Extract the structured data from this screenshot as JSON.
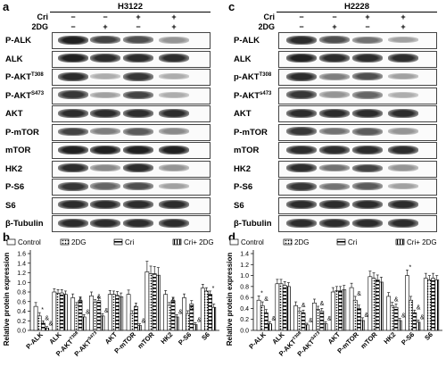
{
  "panel_letters": {
    "a": "a",
    "b": "b",
    "c": "c",
    "d": "d"
  },
  "blot_a": {
    "cell_line": "H3122",
    "rows": [
      {
        "name": "Cri",
        "signs": [
          "−",
          "−",
          "+",
          "+"
        ]
      },
      {
        "name": "2DG",
        "signs": [
          "−",
          "+",
          "−",
          "+"
        ]
      }
    ],
    "lanes": [
      {
        "label": "P-ALK",
        "sup": ""
      },
      {
        "label": "ALK",
        "sup": ""
      },
      {
        "label": "P-AKT",
        "sup": "T308"
      },
      {
        "label": "P-AKT",
        "sup": "S473"
      },
      {
        "label": "AKT",
        "sup": ""
      },
      {
        "label": "P-mTOR",
        "sup": ""
      },
      {
        "label": "mTOR",
        "sup": ""
      },
      {
        "label": "HK2",
        "sup": ""
      },
      {
        "label": "P-S6",
        "sup": ""
      },
      {
        "label": "S6",
        "sup": ""
      },
      {
        "label": "β-Tubulin",
        "sup": ""
      }
    ],
    "intensities": [
      [
        0.95,
        0.8,
        0.75,
        0.45
      ],
      [
        0.95,
        0.9,
        0.9,
        0.9
      ],
      [
        0.9,
        0.35,
        0.85,
        0.35
      ],
      [
        0.85,
        0.4,
        0.8,
        0.35
      ],
      [
        0.9,
        0.9,
        0.9,
        0.9
      ],
      [
        0.8,
        0.55,
        0.7,
        0.5
      ],
      [
        0.95,
        0.95,
        0.95,
        0.95
      ],
      [
        0.9,
        0.5,
        0.9,
        0.45
      ],
      [
        0.85,
        0.65,
        0.75,
        0.4
      ],
      [
        0.9,
        0.9,
        0.9,
        0.9
      ],
      [
        0.9,
        0.9,
        0.9,
        0.9
      ]
    ]
  },
  "blot_c": {
    "cell_line": "H2228",
    "rows": [
      {
        "name": "Cri",
        "signs": [
          "−",
          "−",
          "+",
          "+"
        ]
      },
      {
        "name": "2DG",
        "signs": [
          "−",
          "+",
          "−",
          "+"
        ]
      }
    ],
    "lanes": [
      {
        "label": "P-ALK",
        "sup": ""
      },
      {
        "label": "ALK",
        "sup": ""
      },
      {
        "label": "p-AKT",
        "sup": "T308"
      },
      {
        "label": "P-AKT",
        "sup": "s473"
      },
      {
        "label": "AKT",
        "sup": ""
      },
      {
        "label": "P-mTOR",
        "sup": ""
      },
      {
        "label": "mTOR",
        "sup": ""
      },
      {
        "label": "HK2",
        "sup": ""
      },
      {
        "label": "P-S6",
        "sup": ""
      },
      {
        "label": "S6",
        "sup": ""
      },
      {
        "label": "β-Tubulin",
        "sup": ""
      }
    ],
    "intensities": [
      [
        0.9,
        0.75,
        0.6,
        0.4
      ],
      [
        0.95,
        0.9,
        0.9,
        0.9
      ],
      [
        0.9,
        0.55,
        0.75,
        0.4
      ],
      [
        0.85,
        0.45,
        0.65,
        0.35
      ],
      [
        0.9,
        0.9,
        0.9,
        0.9
      ],
      [
        0.85,
        0.6,
        0.7,
        0.45
      ],
      [
        0.9,
        0.9,
        0.9,
        0.9
      ],
      [
        0.9,
        0.6,
        0.8,
        0.45
      ],
      [
        0.85,
        0.6,
        0.7,
        0.4
      ],
      [
        0.9,
        0.9,
        0.9,
        0.9
      ],
      [
        0.9,
        0.9,
        0.9,
        0.9
      ]
    ]
  },
  "chart_data": [
    {
      "type": "bar",
      "panel": "b",
      "ylabel": "Relative protein expression",
      "ylim": [
        0.0,
        1.6
      ],
      "yticks": [
        "0.0",
        "0.2",
        "0.4",
        "0.6",
        "0.8",
        "1.0",
        "1.2",
        "1.4",
        "1.6"
      ],
      "categories": [
        "P-ALK",
        "ALK",
        "P-AKT^T308",
        "P-AKT^S473",
        "AKT",
        "P-mTOR",
        "mTOR",
        "HK2",
        "P-S6",
        "S6"
      ],
      "series": [
        {
          "name": "Control",
          "values": [
            0.5,
            0.8,
            0.68,
            0.72,
            0.75,
            0.75,
            1.22,
            0.75,
            0.68,
            0.88
          ]
        },
        {
          "name": "2DG",
          "values": [
            0.3,
            0.77,
            0.52,
            0.58,
            0.75,
            0.35,
            1.18,
            0.52,
            0.35,
            0.82
          ]
        },
        {
          "name": "Cri",
          "values": [
            0.15,
            0.78,
            0.62,
            0.62,
            0.73,
            0.5,
            1.18,
            0.62,
            0.55,
            0.75
          ]
        },
        {
          "name": "Cri+ 2DG",
          "values": [
            0.05,
            0.75,
            0.28,
            0.3,
            0.7,
            0.1,
            1.15,
            0.28,
            0.12,
            0.48
          ]
        }
      ],
      "errors": [
        [
          0.08,
          0.07,
          0.08,
          0.08,
          0.08,
          0.09,
          0.22,
          0.08,
          0.08,
          0.08
        ],
        [
          0.07,
          0.08,
          0.06,
          0.06,
          0.07,
          0.06,
          0.16,
          0.06,
          0.06,
          0.07
        ],
        [
          0.05,
          0.07,
          0.08,
          0.07,
          0.08,
          0.07,
          0.15,
          0.07,
          0.07,
          0.07
        ],
        [
          0.03,
          0.07,
          0.05,
          0.05,
          0.08,
          0.04,
          0.16,
          0.05,
          0.04,
          0.07
        ]
      ],
      "annotations": [
        {
          "category": 0,
          "series": 1,
          "text": "*"
        },
        {
          "category": 0,
          "series": 2,
          "text": "&"
        },
        {
          "category": 0,
          "series": 3,
          "text": "&"
        },
        {
          "category": 2,
          "series": 1,
          "text": "&"
        },
        {
          "category": 2,
          "series": 3,
          "text": "&"
        },
        {
          "category": 3,
          "series": 1,
          "text": "&"
        },
        {
          "category": 3,
          "series": 3,
          "text": "&"
        },
        {
          "category": 5,
          "series": 1,
          "text": "*"
        },
        {
          "category": 5,
          "series": 3,
          "text": "&"
        },
        {
          "category": 7,
          "series": 1,
          "text": "&"
        },
        {
          "category": 7,
          "series": 3,
          "text": "&"
        },
        {
          "category": 8,
          "series": 1,
          "text": "&"
        },
        {
          "category": 8,
          "series": 3,
          "text": "&"
        },
        {
          "category": 9,
          "series": 2,
          "text": "*"
        }
      ],
      "legend_placement": "top"
    },
    {
      "type": "bar",
      "panel": "d",
      "ylabel": "Relative protein expression",
      "ylim": [
        0.0,
        1.4
      ],
      "yticks": [
        "0.0",
        "0.2",
        "0.4",
        "0.6",
        "0.8",
        "1.0",
        "1.2",
        "1.4"
      ],
      "categories": [
        "P-ALK",
        "ALK",
        "P-AKT^T308",
        "P-AKT^S473",
        "AKT",
        "P-mTOR",
        "mTOR",
        "HK2",
        "P-S6",
        "S6"
      ],
      "series": [
        {
          "name": "Control",
          "values": [
            0.55,
            0.85,
            0.45,
            0.5,
            0.7,
            0.78,
            0.98,
            0.62,
            1.0,
            0.95
          ]
        },
        {
          "name": "2DG",
          "values": [
            0.45,
            0.85,
            0.35,
            0.38,
            0.72,
            0.55,
            0.95,
            0.45,
            0.55,
            0.92
          ]
        },
        {
          "name": "Cri",
          "values": [
            0.32,
            0.82,
            0.32,
            0.35,
            0.72,
            0.4,
            0.92,
            0.42,
            0.32,
            0.95
          ]
        },
        {
          "name": "Cri+ 2DG",
          "values": [
            0.12,
            0.8,
            0.1,
            0.12,
            0.74,
            0.18,
            0.88,
            0.18,
            0.15,
            0.92
          ]
        }
      ],
      "errors": [
        [
          0.08,
          0.08,
          0.07,
          0.07,
          0.08,
          0.08,
          0.1,
          0.07,
          0.1,
          0.09
        ],
        [
          0.07,
          0.08,
          0.06,
          0.06,
          0.08,
          0.07,
          0.1,
          0.06,
          0.07,
          0.08
        ],
        [
          0.06,
          0.07,
          0.05,
          0.05,
          0.08,
          0.06,
          0.09,
          0.06,
          0.05,
          0.09
        ],
        [
          0.04,
          0.07,
          0.03,
          0.04,
          0.08,
          0.05,
          0.09,
          0.04,
          0.04,
          0.08
        ]
      ],
      "annotations": [
        {
          "category": 0,
          "series": 0,
          "text": "*"
        },
        {
          "category": 0,
          "series": 1,
          "text": "&"
        },
        {
          "category": 0,
          "series": 3,
          "text": "&"
        },
        {
          "category": 2,
          "series": 1,
          "text": "&"
        },
        {
          "category": 2,
          "series": 3,
          "text": "&"
        },
        {
          "category": 3,
          "series": 1,
          "text": "&"
        },
        {
          "category": 3,
          "series": 3,
          "text": "&"
        },
        {
          "category": 5,
          "series": 1,
          "text": "&"
        },
        {
          "category": 5,
          "series": 3,
          "text": "&"
        },
        {
          "category": 7,
          "series": 1,
          "text": "&"
        },
        {
          "category": 7,
          "series": 3,
          "text": "&"
        },
        {
          "category": 8,
          "series": 0,
          "text": "*"
        },
        {
          "category": 8,
          "series": 2,
          "text": "&"
        },
        {
          "category": 8,
          "series": 3,
          "text": "&"
        }
      ],
      "legend_placement": "top"
    }
  ]
}
